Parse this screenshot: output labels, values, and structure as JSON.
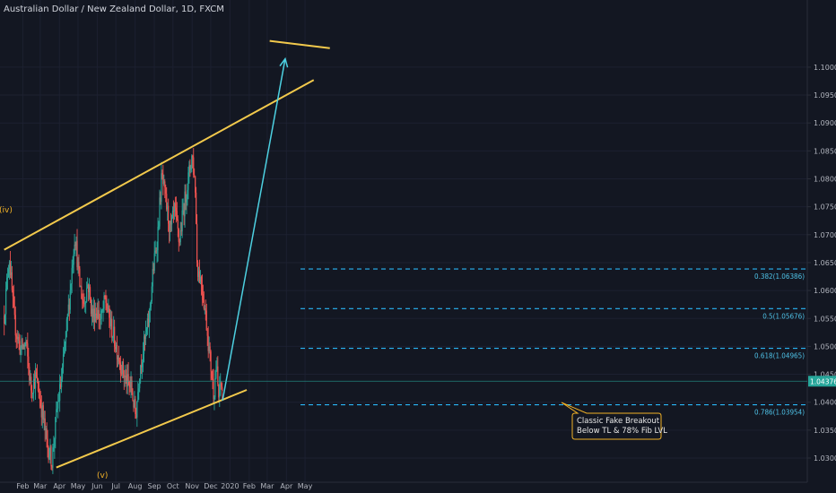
{
  "header": {
    "symbol_title": "Australian Dollar / New Zealand Dollar, 1D, FXCM"
  },
  "colors": {
    "background": "#131722",
    "bull": "#26a69a",
    "bear": "#ef5350",
    "trendline": "#f2c94c",
    "fib": "#29b6f6",
    "arrow": "#4dd0e1",
    "axis_text": "#b2b5be",
    "current_price_line": "#26a69a",
    "callout_border": "#f2b227"
  },
  "chart_data": {
    "type": "candlestick",
    "instrument": "AUDNZD",
    "timeframe": "1D",
    "source": "FXCM",
    "x_axis": {
      "type": "date",
      "tick_labels": [
        "Feb",
        "Mar",
        "Apr",
        "May",
        "Jun",
        "Jul",
        "Aug",
        "Sep",
        "Oct",
        "Nov",
        "Dec",
        "2020",
        "Feb",
        "Mar",
        "Apr",
        "May"
      ]
    },
    "y_axis": {
      "position": "right",
      "ylim": [
        1.0273,
        1.1045
      ],
      "tick_values": [
        1.03,
        1.035,
        1.04,
        1.045,
        1.05,
        1.055,
        1.06,
        1.065,
        1.07,
        1.075,
        1.08,
        1.085,
        1.09,
        1.095,
        1.1
      ],
      "tick_labels": [
        "1.03000",
        "1.03500",
        "1.04000",
        "1.04500",
        "1.05000",
        "1.05500",
        "1.06000",
        "1.06500",
        "1.07000",
        "1.07500",
        "1.08000",
        "1.08500",
        "1.09000",
        "1.09500",
        "1.10000"
      ]
    },
    "current_price": {
      "value": 1.04376,
      "label": "1.04376"
    },
    "price_path": [
      {
        "date": "2019-01-02",
        "close": 1.0555
      },
      {
        "date": "2019-01-10",
        "close": 1.0665
      },
      {
        "date": "2019-01-18",
        "close": 1.0545
      },
      {
        "date": "2019-01-28",
        "close": 1.0495
      },
      {
        "date": "2019-02-06",
        "close": 1.0505
      },
      {
        "date": "2019-02-14",
        "close": 1.0425
      },
      {
        "date": "2019-02-22",
        "close": 1.0445
      },
      {
        "date": "2019-03-04",
        "close": 1.0385
      },
      {
        "date": "2019-03-12",
        "close": 1.0325
      },
      {
        "date": "2019-03-20",
        "close": 1.0295
      },
      {
        "date": "2019-03-28",
        "close": 1.0385
      },
      {
        "date": "2019-04-05",
        "close": 1.0445
      },
      {
        "date": "2019-04-12",
        "close": 1.0525
      },
      {
        "date": "2019-04-18",
        "close": 1.0595
      },
      {
        "date": "2019-04-26",
        "close": 1.0705
      },
      {
        "date": "2019-05-03",
        "close": 1.0615
      },
      {
        "date": "2019-05-10",
        "close": 1.0575
      },
      {
        "date": "2019-05-17",
        "close": 1.0615
      },
      {
        "date": "2019-05-24",
        "close": 1.0555
      },
      {
        "date": "2019-05-31",
        "close": 1.0565
      },
      {
        "date": "2019-06-07",
        "close": 1.0545
      },
      {
        "date": "2019-06-14",
        "close": 1.0585
      },
      {
        "date": "2019-06-21",
        "close": 1.0545
      },
      {
        "date": "2019-06-28",
        "close": 1.0515
      },
      {
        "date": "2019-07-05",
        "close": 1.0485
      },
      {
        "date": "2019-07-12",
        "close": 1.0455
      },
      {
        "date": "2019-07-19",
        "close": 1.0435
      },
      {
        "date": "2019-07-26",
        "close": 1.0425
      },
      {
        "date": "2019-08-02",
        "close": 1.0375
      },
      {
        "date": "2019-08-09",
        "close": 1.0465
      },
      {
        "date": "2019-08-16",
        "close": 1.0505
      },
      {
        "date": "2019-08-23",
        "close": 1.0545
      },
      {
        "date": "2019-08-30",
        "close": 1.0635
      },
      {
        "date": "2019-09-06",
        "close": 1.0695
      },
      {
        "date": "2019-09-13",
        "close": 1.0805
      },
      {
        "date": "2019-09-20",
        "close": 1.0755
      },
      {
        "date": "2019-09-27",
        "close": 1.0705
      },
      {
        "date": "2019-10-04",
        "close": 1.0745
      },
      {
        "date": "2019-10-11",
        "close": 1.0685
      },
      {
        "date": "2019-10-18",
        "close": 1.0745
      },
      {
        "date": "2019-10-25",
        "close": 1.0795
      },
      {
        "date": "2019-11-01",
        "close": 1.0845
      },
      {
        "date": "2019-11-06",
        "close": 1.0785
      },
      {
        "date": "2019-11-09",
        "close": 1.0645
      },
      {
        "date": "2019-11-16",
        "close": 1.0615
      },
      {
        "date": "2019-11-23",
        "close": 1.0555
      },
      {
        "date": "2019-11-30",
        "close": 1.0475
      },
      {
        "date": "2019-12-06",
        "close": 1.0415
      },
      {
        "date": "2019-12-10",
        "close": 1.0465
      },
      {
        "date": "2019-12-14",
        "close": 1.0405
      },
      {
        "date": "2019-12-17",
        "close": 1.0435
      },
      {
        "date": "2019-12-20",
        "close": 1.0418
      }
    ],
    "trendlines": [
      {
        "name": "upper-channel",
        "from": {
          "date": "2019-01-02",
          "price": 1.0673
        },
        "to": {
          "date": "2020-05-15",
          "price": 1.0977
        }
      },
      {
        "name": "lower-channel",
        "from": {
          "date": "2019-03-27",
          "price": 1.0283
        },
        "to": {
          "date": "2020-01-28",
          "price": 1.0422
        }
      },
      {
        "name": "top-right-line",
        "from": {
          "date": "2020-03-05",
          "price": 1.1047
        },
        "to": {
          "date": "2020-06-10",
          "price": 1.1034
        }
      }
    ],
    "fib_levels": [
      {
        "label": "0.382(1.06386)",
        "value": 1.06386
      },
      {
        "label": "0.5(1.05676)",
        "value": 1.05676
      },
      {
        "label": "0.618(1.04965)",
        "value": 1.04965
      },
      {
        "label": "0.786(1.03954)",
        "value": 1.03954
      }
    ],
    "projection_arrow": {
      "from": {
        "date": "2019-12-20",
        "price": 1.0403
      },
      "to": {
        "date": "2020-03-30",
        "price": 1.1015
      }
    },
    "wave_labels": [
      {
        "text": "(iv)"
      },
      {
        "text": "(v)"
      }
    ],
    "annotation": {
      "lines": [
        "Classic Fake Breakout",
        "Below TL & 78% Fib LVL"
      ]
    }
  }
}
